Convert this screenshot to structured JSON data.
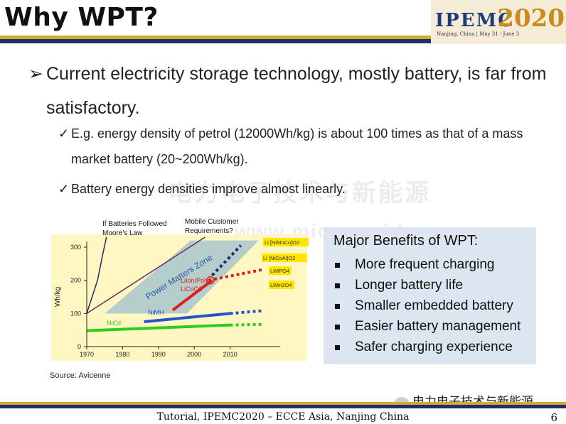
{
  "slide": {
    "title": "Why WPT?",
    "page_number": "6",
    "footer": "Tutorial, IPEMC2020 – ECCE Asia, Nanjing China",
    "wechat_label": "电力电子技术与新能源"
  },
  "logo": {
    "text": "IPEMC",
    "year": "2020",
    "sub": "Nanjing, China | May 31 - June 3"
  },
  "bullets": {
    "main_arrow": "➢",
    "main": "Current electricity storage technology, mostly battery, is far from satisfactory.",
    "check": "✓",
    "sub1": "E.g. energy density of petrol (12000Wh/kg) is about 100 times as that of a mass market battery (20~200Wh/kg).",
    "sub2": "Battery energy densities improve almost linearly."
  },
  "watermark": {
    "line1": "电力电子技术与新能源",
    "line2": "www.micro-grid.com"
  },
  "source": "Source: Avicenne",
  "benefits": {
    "heading": "Major Benefits of WPT:",
    "items": [
      "More frequent charging",
      "Longer battery life",
      "Smaller embedded battery",
      "Easier battery management",
      "Safer charging experience"
    ]
  },
  "chart_data": {
    "type": "line",
    "ylabel": "Wh/kg",
    "xlabel": "",
    "xlim": [
      1970,
      2015
    ],
    "ylim": [
      0,
      320
    ],
    "x_ticks": [
      "1970",
      "1980",
      "1990",
      "2000",
      "2010"
    ],
    "y_ticks": [
      "0",
      "100",
      "200",
      "300"
    ],
    "grid": false,
    "annotations": {
      "moores": "If Batteries Followed Moore's Law",
      "mobile": "Mobile Customer Requirements?",
      "zone": "Power Matters Zone",
      "nicd": "NiCd",
      "nimh": "NiMH",
      "liion": "LiIon/Poly LiCoO2",
      "li_nimnco": "Li [NiMnCo]O2",
      "li_nicoal": "Li [NiCoAl]O2",
      "limpo4": "LiMPO4",
      "limn2o4": "LiMn2O4"
    },
    "series": [
      {
        "key": "nicd",
        "color": "#2ecc1f",
        "solid": [
          [
            1970,
            48
          ],
          [
            2010,
            65
          ]
        ],
        "dashed": [
          [
            2010,
            65
          ],
          [
            2019,
            67
          ]
        ]
      },
      {
        "key": "nimh",
        "color": "#2255cc",
        "solid": [
          [
            1986,
            75
          ],
          [
            2010,
            100
          ]
        ],
        "dashed": [
          [
            2010,
            100
          ],
          [
            2019,
            108
          ]
        ]
      },
      {
        "key": "liion",
        "color": "#dd1f1f",
        "solid": [
          [
            1994,
            110
          ],
          [
            2005,
            200
          ]
        ],
        "dashed": [
          [
            2004,
            200
          ],
          [
            2019,
            232
          ]
        ]
      },
      {
        "key": "li_nimnco",
        "color": "#1b2e6b",
        "solid": [],
        "dashed": [
          [
            2005,
            215
          ],
          [
            2013,
            305
          ]
        ]
      },
      {
        "key": "moores",
        "color": "#1b2e6b",
        "solid": [
          [
            1970,
            100
          ],
          [
            1973,
            200
          ],
          [
            1974.5,
            280
          ],
          [
            1975.5,
            330
          ]
        ],
        "dashed": []
      },
      {
        "key": "mobile",
        "color": "#6b2a5e",
        "solid": [
          [
            1970,
            100
          ],
          [
            2003,
            330
          ]
        ],
        "dashed": []
      }
    ],
    "zone_polygon": [
      [
        1975,
        100
      ],
      [
        1998,
        100
      ],
      [
        2018,
        320
      ],
      [
        1999,
        320
      ]
    ],
    "marker": {
      "x": 2004.5,
      "y": 200
    },
    "colors": {
      "background": "#fff7c2",
      "zone": "#a8c7cc",
      "zone_text": "#2a5aa8",
      "red": "#dd1f1f",
      "navy": "#1b2e6b",
      "label_yellow": "#ffe500"
    }
  }
}
